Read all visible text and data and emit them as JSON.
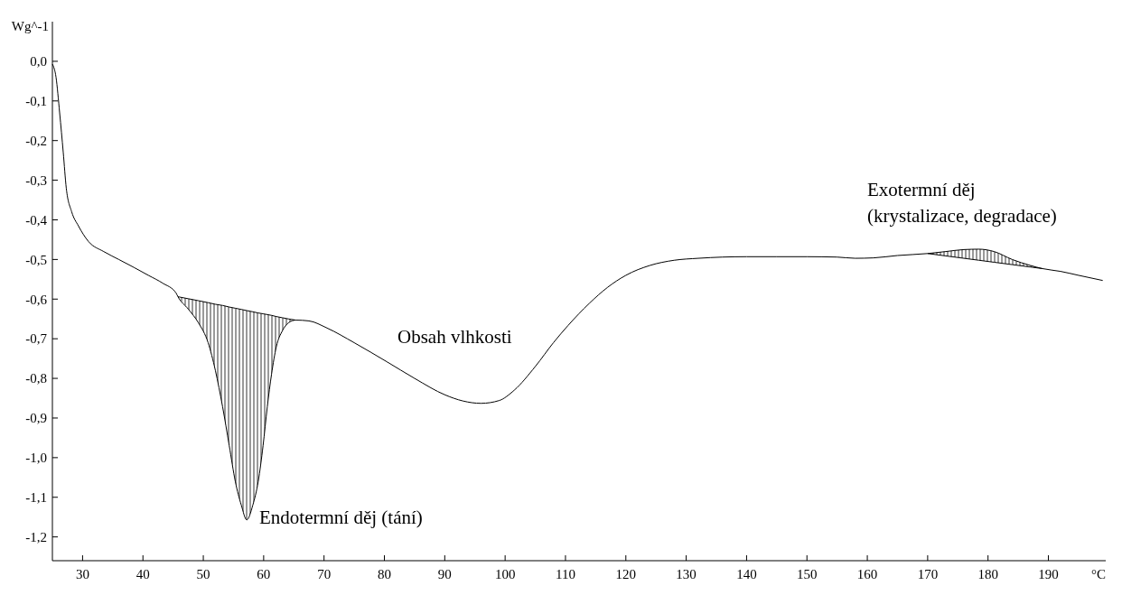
{
  "chart_data": {
    "type": "line",
    "xlabel": "°C",
    "ylabel": "Wg^-1",
    "xlim": [
      25,
      199.5
    ],
    "ylim": [
      -1.26,
      0.1
    ],
    "xticks": [
      30,
      40,
      50,
      60,
      70,
      80,
      90,
      100,
      110,
      120,
      130,
      140,
      150,
      160,
      170,
      180,
      190
    ],
    "yticks": [
      {
        "value": 0,
        "label": "0,0"
      },
      {
        "value": -0.1,
        "label": "-0,1"
      },
      {
        "value": -0.2,
        "label": "-0,2"
      },
      {
        "value": -0.3,
        "label": "-0,3"
      },
      {
        "value": -0.4,
        "label": "-0,4"
      },
      {
        "value": -0.5,
        "label": "-0,5"
      },
      {
        "value": -0.6,
        "label": "-0,6"
      },
      {
        "value": -0.7,
        "label": "-0,7"
      },
      {
        "value": -0.8,
        "label": "-0,8"
      },
      {
        "value": -0.9,
        "label": "-0,9"
      },
      {
        "value": -1.0,
        "label": "-1,0"
      },
      {
        "value": -1.1,
        "label": "-1,1"
      },
      {
        "value": -1.2,
        "label": "-1,2"
      }
    ],
    "grid": false,
    "series": [
      {
        "color": "#000000",
        "x": [
          25.0,
          25.6,
          26.2,
          26.8,
          27.3,
          28.2,
          29.3,
          31.0,
          33.5,
          36.0,
          38.5,
          40.9,
          43.3,
          45.5,
          45.8,
          47.5,
          49.2,
          50.8,
          52.0,
          53.2,
          54.3,
          55.3,
          56.3,
          57.2,
          58.2,
          59.1,
          59.9,
          60.6,
          61.3,
          62.1,
          63.1,
          64.1,
          65.3,
          67.5,
          70.5,
          75.0,
          80.4,
          85.0,
          90.1,
          93.0,
          96.0,
          99.0,
          101.5,
          105.0,
          108.0,
          110.4,
          114.0,
          117.0,
          120.0,
          124.0,
          128.0,
          132.0,
          136.0,
          140.0,
          145.0,
          150.0,
          155.0,
          158.0,
          161.0,
          165.0,
          170.0,
          173.0,
          176.0,
          178.5,
          181.0,
          184.0,
          187.0,
          189.0,
          192.0,
          195.0,
          199.0
        ],
        "values": [
          -0.007,
          -0.04,
          -0.13,
          -0.23,
          -0.32,
          -0.38,
          -0.415,
          -0.455,
          -0.48,
          -0.5,
          -0.52,
          -0.54,
          -0.56,
          -0.585,
          -0.594,
          -0.625,
          -0.66,
          -0.71,
          -0.78,
          -0.872,
          -0.97,
          -1.06,
          -1.12,
          -1.157,
          -1.12,
          -1.06,
          -0.97,
          -0.872,
          -0.79,
          -0.72,
          -0.68,
          -0.66,
          -0.653,
          -0.655,
          -0.673,
          -0.71,
          -0.758,
          -0.8,
          -0.842,
          -0.857,
          -0.863,
          -0.856,
          -0.83,
          -0.77,
          -0.71,
          -0.667,
          -0.61,
          -0.57,
          -0.54,
          -0.515,
          -0.502,
          -0.497,
          -0.494,
          -0.493,
          -0.493,
          -0.493,
          -0.494,
          -0.497,
          -0.496,
          -0.49,
          -0.485,
          -0.48,
          -0.475,
          -0.474,
          -0.48,
          -0.5,
          -0.515,
          -0.523,
          -0.53,
          -0.54,
          -0.553
        ]
      },
      {
        "type": "line",
        "color": "#000000",
        "x": [
          45.8,
          47.5,
          49.2,
          50.8,
          52.0,
          53.2,
          54.3,
          55.3,
          56.3,
          57.2,
          58.2,
          59.1,
          59.9,
          60.6,
          61.3,
          62.1,
          63.1,
          64.1,
          65.3
        ],
        "values": [
          -0.594,
          -0.599,
          -0.604,
          -0.609,
          -0.613,
          -0.616,
          -0.62,
          -0.623,
          -0.626,
          -0.629,
          -0.632,
          -0.635,
          -0.637,
          -0.639,
          -0.641,
          -0.644,
          -0.647,
          -0.65,
          -0.653
        ],
        "lower": [
          -0.594,
          -0.625,
          -0.66,
          -0.71,
          -0.78,
          -0.872,
          -0.97,
          -1.06,
          -1.12,
          -1.157,
          -1.12,
          -1.06,
          -0.97,
          -0.872,
          -0.79,
          -0.72,
          -0.68,
          -0.66,
          -0.653
        ],
        "upper": [
          -0.594,
          -0.599,
          -0.604,
          -0.609,
          -0.613,
          -0.616,
          -0.62,
          -0.623,
          -0.626,
          -0.629,
          -0.632,
          -0.635,
          -0.637,
          -0.639,
          -0.641,
          -0.644,
          -0.647,
          -0.65,
          -0.653
        ]
      },
      {
        "type": "line",
        "color": "#000000",
        "x": [
          170.0,
          173.0,
          176.0,
          178.5,
          181.0,
          184.0,
          187.0,
          189.0
        ],
        "values": [
          -0.485,
          -0.491,
          -0.497,
          -0.502,
          -0.507,
          -0.513,
          -0.519,
          -0.523
        ],
        "lower": [
          -0.485,
          -0.491,
          -0.497,
          -0.502,
          -0.507,
          -0.513,
          -0.519,
          -0.523
        ],
        "upper": [
          -0.485,
          -0.48,
          -0.475,
          -0.474,
          -0.48,
          -0.5,
          -0.515,
          -0.523
        ]
      }
    ],
    "annotations": [
      "Endotermní děj (tání)",
      "Obsah vlhkosti",
      "Exotermní děj",
      "(krystalizace, degradace)"
    ]
  }
}
